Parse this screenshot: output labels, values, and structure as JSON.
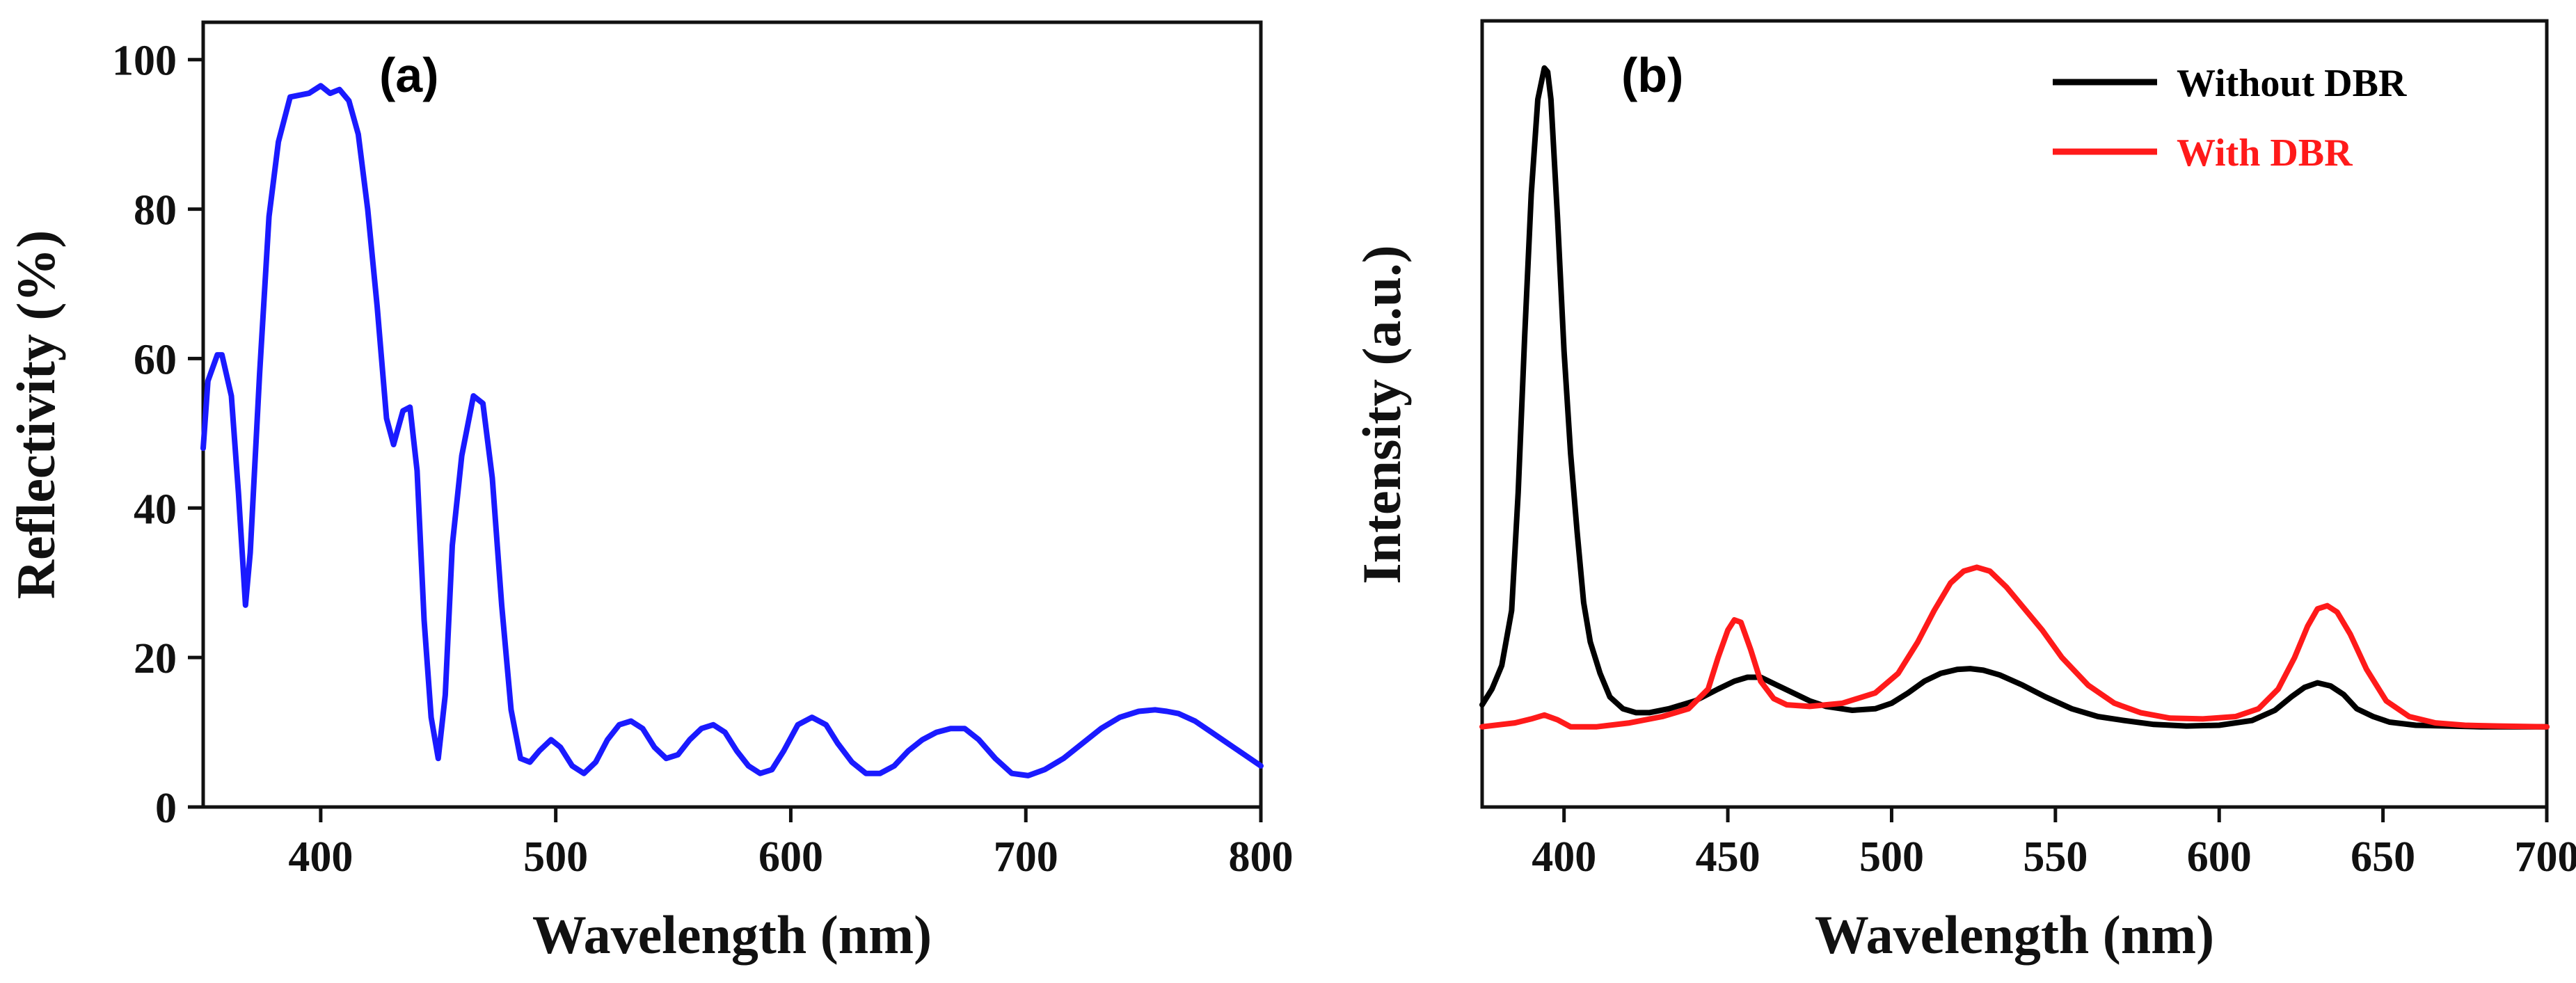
{
  "chart_data": [
    {
      "id": "a",
      "panel_label": "(a)",
      "type": "line",
      "xlabel": "Wavelength (nm)",
      "ylabel": "Reflectivity (%)",
      "xlim": [
        350,
        800
      ],
      "ylim": [
        0,
        105
      ],
      "xticks": [
        400,
        500,
        600,
        700,
        800
      ],
      "yticks": [
        0,
        20,
        40,
        60,
        80,
        100
      ],
      "grid": false,
      "series": [
        {
          "name": "Reflectivity",
          "color": "#1a1aff",
          "x": [
            350,
            352,
            356,
            358,
            362,
            365,
            368,
            370,
            374,
            378,
            382,
            387,
            395,
            400,
            404,
            408,
            412,
            416,
            420,
            424,
            428,
            431,
            435,
            438,
            441,
            444,
            447,
            450,
            453,
            456,
            460,
            465,
            469,
            473,
            477,
            481,
            485,
            489,
            493,
            498,
            502,
            507,
            512,
            517,
            522,
            527,
            532,
            537,
            542,
            547,
            552,
            557,
            562,
            567,
            572,
            577,
            582,
            587,
            592,
            597,
            603,
            609,
            615,
            620,
            626,
            632,
            638,
            644,
            650,
            656,
            662,
            668,
            674,
            680,
            687,
            694,
            701,
            708,
            716,
            724,
            732,
            740,
            748,
            755,
            760,
            765,
            772,
            779,
            786,
            793,
            800
          ],
          "values": [
            48,
            57,
            60.5,
            60.5,
            55,
            42,
            27,
            34,
            58,
            79,
            89,
            95,
            95.5,
            96.5,
            95.5,
            96,
            94.5,
            90,
            80,
            67,
            52,
            48.5,
            53,
            53.5,
            45,
            25,
            12,
            6.5,
            15,
            35,
            47,
            55,
            54,
            44,
            27,
            13,
            6.5,
            6,
            7.5,
            9,
            8,
            5.5,
            4.5,
            6,
            9,
            11,
            11.5,
            10.5,
            8,
            6.5,
            7,
            9,
            10.5,
            11,
            10,
            7.5,
            5.5,
            4.5,
            5,
            7.5,
            11,
            12,
            11,
            8.5,
            6,
            4.5,
            4.5,
            5.5,
            7.5,
            9,
            10,
            10.5,
            10.5,
            9,
            6.5,
            4.5,
            4.2,
            5,
            6.5,
            8.5,
            10.5,
            12,
            12.8,
            13,
            12.8,
            12.5,
            11.5,
            10,
            8.5,
            7,
            5.5
          ]
        }
      ]
    },
    {
      "id": "b",
      "panel_label": "(b)",
      "type": "line",
      "xlabel": "Wavelength (nm)",
      "ylabel": "Intensity (a.u.)",
      "xlim": [
        375,
        700
      ],
      "ylim": [
        0,
        100
      ],
      "xticks": [
        400,
        450,
        500,
        550,
        600,
        650,
        700
      ],
      "yticks": [],
      "grid": false,
      "legend_position": "top-right",
      "series": [
        {
          "name": "Without DBR",
          "color": "#000000",
          "x": [
            375,
            378,
            381,
            384,
            386,
            388,
            390,
            392,
            394,
            395,
            396,
            398,
            400,
            402,
            404,
            406,
            408,
            411,
            414,
            418,
            422,
            426,
            432,
            440,
            447,
            452,
            456,
            460,
            465,
            470,
            475,
            480,
            488,
            495,
            500,
            505,
            510,
            515,
            520,
            524,
            528,
            533,
            540,
            547,
            555,
            563,
            571,
            580,
            590,
            600,
            610,
            617,
            622,
            626,
            630,
            634,
            638,
            642,
            647,
            652,
            660,
            670,
            680,
            690,
            700
          ],
          "values": [
            13,
            15,
            18,
            25,
            40,
            60,
            78,
            90,
            94,
            93.5,
            90,
            75,
            58,
            45,
            35,
            26,
            21,
            17,
            14,
            12.5,
            12,
            12,
            12.5,
            13.5,
            15,
            16,
            16.5,
            16.5,
            15.5,
            14.5,
            13.5,
            12.8,
            12.3,
            12.5,
            13.2,
            14.5,
            16,
            17,
            17.5,
            17.6,
            17.4,
            16.8,
            15.5,
            14,
            12.5,
            11.5,
            11,
            10.5,
            10.3,
            10.4,
            11,
            12.3,
            14,
            15.2,
            15.8,
            15.4,
            14.3,
            12.5,
            11.5,
            10.8,
            10.4,
            10.3,
            10.2,
            10.2,
            10.2
          ]
        },
        {
          "name": "With DBR",
          "color": "#ff1a1a",
          "x": [
            375,
            385,
            390,
            394,
            398,
            402,
            410,
            420,
            430,
            438,
            444,
            447,
            450,
            452,
            454,
            457,
            460,
            464,
            468,
            475,
            485,
            495,
            502,
            508,
            513,
            518,
            522,
            526,
            530,
            535,
            540,
            546,
            552,
            560,
            568,
            576,
            585,
            595,
            605,
            612,
            618,
            623,
            627,
            630,
            633,
            636,
            640,
            645,
            651,
            658,
            666,
            675,
            685,
            700
          ],
          "values": [
            10.2,
            10.7,
            11.2,
            11.7,
            11.1,
            10.2,
            10.2,
            10.7,
            11.5,
            12.5,
            15,
            19,
            22.5,
            23.8,
            23.5,
            20,
            16,
            13.8,
            13,
            12.8,
            13.2,
            14.5,
            17,
            21,
            25,
            28.5,
            30,
            30.5,
            30,
            28,
            25.5,
            22.5,
            19,
            15.5,
            13.2,
            12,
            11.3,
            11.2,
            11.5,
            12.5,
            15,
            19,
            23,
            25.2,
            25.6,
            24.8,
            22,
            17.5,
            13.5,
            11.5,
            10.7,
            10.4,
            10.3,
            10.2
          ]
        }
      ]
    }
  ]
}
